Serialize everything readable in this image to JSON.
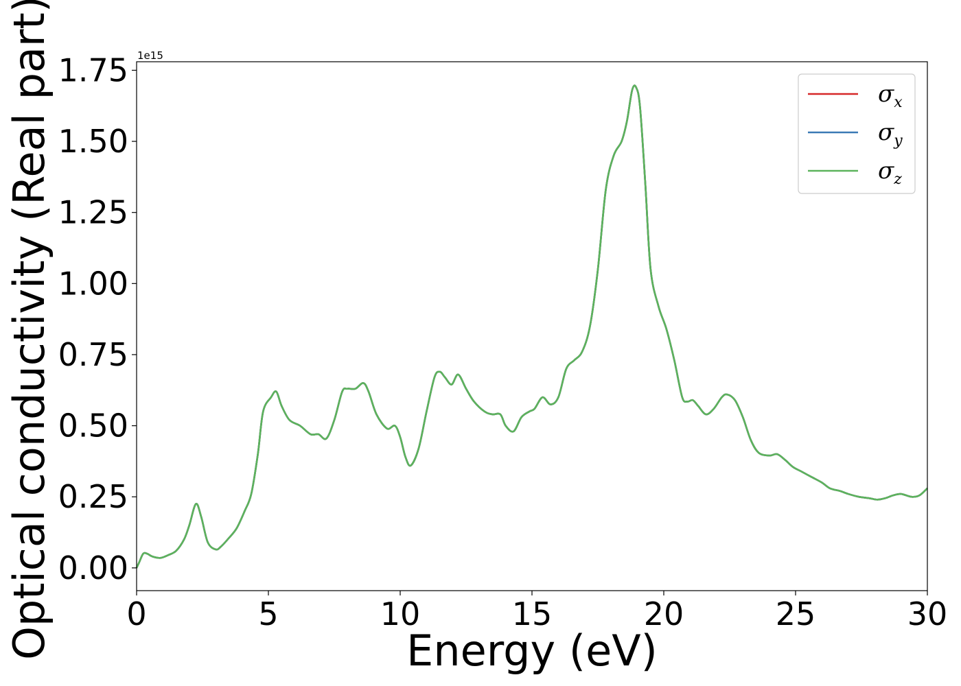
{
  "chart_data": {
    "type": "line",
    "xlabel": "Energy (eV)",
    "ylabel": "Optical conductivity (Real part)",
    "y_offset_label": "1e15",
    "xlim": [
      0,
      30
    ],
    "ylim": [
      -0.08,
      1.78
    ],
    "x_ticks": [
      0,
      5,
      10,
      15,
      20,
      25,
      30
    ],
    "x_tick_labels": [
      "0",
      "5",
      "10",
      "15",
      "20",
      "25",
      "30"
    ],
    "y_ticks": [
      0,
      0.25,
      0.5,
      0.75,
      1.0,
      1.25,
      1.5,
      1.75
    ],
    "y_tick_labels": [
      "0.00",
      "0.25",
      "0.50",
      "0.75",
      "1.00",
      "1.25",
      "1.50",
      "1.75"
    ],
    "grid": false,
    "legend_position": "top-right",
    "colors": {
      "sigma_x": "#d62728",
      "sigma_y": "#3a7ab5",
      "sigma_z": "#5cb35c"
    },
    "series": [
      {
        "name": "σx",
        "symbol": "σ",
        "subscript": "x",
        "color": "#d62728"
      },
      {
        "name": "σy",
        "symbol": "σ",
        "subscript": "y",
        "color": "#3a7ab5"
      },
      {
        "name": "σz",
        "symbol": "σ",
        "subscript": "z",
        "color": "#5cb35c"
      }
    ],
    "x": [
      0,
      0.1,
      0.25,
      0.4,
      0.6,
      0.9,
      1.2,
      1.5,
      1.8,
      2.0,
      2.25,
      2.45,
      2.7,
      3.0,
      3.2,
      3.5,
      3.8,
      4.1,
      4.35,
      4.6,
      4.8,
      5.1,
      5.3,
      5.5,
      5.8,
      6.2,
      6.6,
      6.9,
      7.2,
      7.5,
      7.8,
      8.0,
      8.3,
      8.6,
      8.8,
      9.1,
      9.5,
      9.8,
      10.0,
      10.2,
      10.4,
      10.7,
      11.0,
      11.3,
      11.5,
      11.7,
      11.95,
      12.2,
      12.5,
      12.8,
      13.2,
      13.5,
      13.8,
      14.0,
      14.3,
      14.6,
      14.9,
      15.1,
      15.4,
      15.7,
      16.0,
      16.3,
      16.6,
      16.9,
      17.2,
      17.5,
      17.8,
      18.1,
      18.4,
      18.6,
      18.8,
      18.95,
      19.1,
      19.3,
      19.5,
      19.8,
      20.1,
      20.4,
      20.7,
      20.9,
      21.1,
      21.3,
      21.6,
      21.9,
      22.2,
      22.4,
      22.7,
      23.0,
      23.3,
      23.6,
      24.0,
      24.3,
      24.6,
      24.9,
      25.2,
      25.6,
      26.0,
      26.3,
      26.7,
      27.0,
      27.4,
      27.8,
      28.1,
      28.4,
      28.7,
      29.0,
      29.4,
      29.7,
      30.0
    ],
    "y": [
      0.0,
      0.02,
      0.05,
      0.05,
      0.04,
      0.035,
      0.045,
      0.06,
      0.1,
      0.15,
      0.225,
      0.18,
      0.09,
      0.065,
      0.075,
      0.105,
      0.14,
      0.2,
      0.26,
      0.4,
      0.55,
      0.6,
      0.62,
      0.57,
      0.52,
      0.5,
      0.47,
      0.47,
      0.455,
      0.52,
      0.62,
      0.63,
      0.63,
      0.65,
      0.62,
      0.54,
      0.49,
      0.5,
      0.46,
      0.39,
      0.36,
      0.42,
      0.55,
      0.67,
      0.69,
      0.67,
      0.645,
      0.68,
      0.63,
      0.585,
      0.55,
      0.54,
      0.54,
      0.5,
      0.48,
      0.53,
      0.55,
      0.56,
      0.6,
      0.575,
      0.6,
      0.7,
      0.73,
      0.76,
      0.85,
      1.05,
      1.33,
      1.45,
      1.5,
      1.57,
      1.68,
      1.69,
      1.62,
      1.35,
      1.05,
      0.92,
      0.84,
      0.73,
      0.6,
      0.585,
      0.59,
      0.57,
      0.54,
      0.56,
      0.6,
      0.61,
      0.59,
      0.53,
      0.45,
      0.405,
      0.395,
      0.4,
      0.38,
      0.355,
      0.34,
      0.32,
      0.3,
      0.28,
      0.27,
      0.26,
      0.25,
      0.245,
      0.24,
      0.245,
      0.255,
      0.26,
      0.25,
      0.255,
      0.28
    ]
  }
}
